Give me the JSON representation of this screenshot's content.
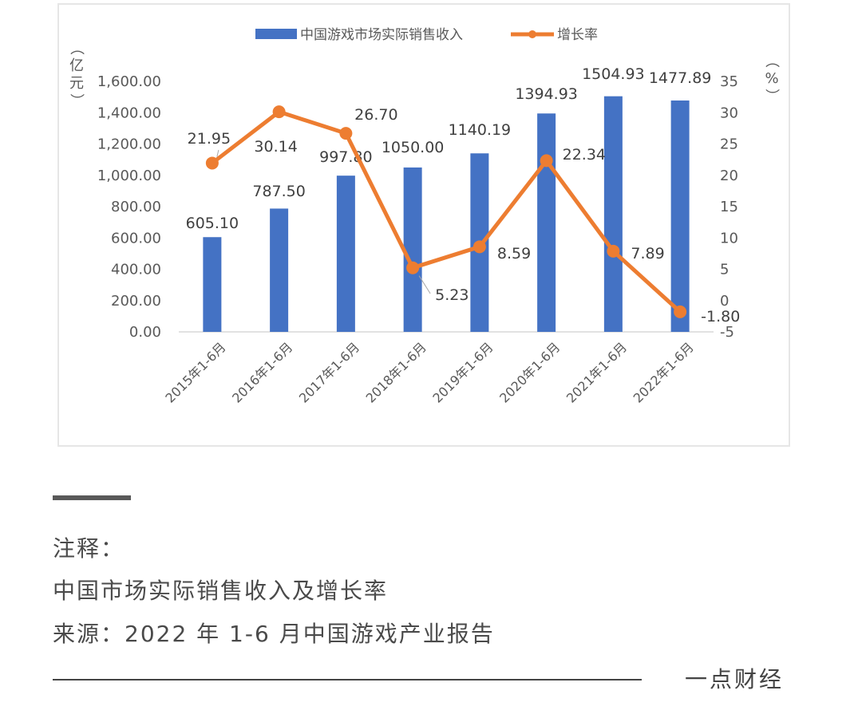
{
  "chart_data": {
    "type": "bar+line",
    "categories": [
      "2015年1-6月",
      "2016年1-6月",
      "2017年1-6月",
      "2018年1-6月",
      "2019年1-6月",
      "2020年1-6月",
      "2021年1-6月",
      "2022年1-6月"
    ],
    "series": [
      {
        "name": "中国游戏市场实际销售收入",
        "type": "bar",
        "axis": "left",
        "color": "#4472C4",
        "values": [
          605.1,
          787.5,
          997.8,
          1050.0,
          1140.19,
          1394.93,
          1504.93,
          1477.89
        ],
        "labels": [
          "605.10",
          "787.50",
          "997.80",
          "1050.00",
          "1140.19",
          "1394.93",
          "1504.93",
          "1477.89"
        ]
      },
      {
        "name": "增长率",
        "type": "line",
        "axis": "right",
        "color": "#ED7D31",
        "values": [
          21.95,
          30.14,
          26.7,
          5.23,
          8.59,
          22.34,
          7.89,
          -1.8
        ],
        "labels": [
          "21.95",
          "30.14",
          "26.70",
          "5.23",
          "8.59",
          "22.34",
          "7.89",
          "-1.80"
        ]
      }
    ],
    "ylabel_left": "（亿元）",
    "ylabel_right": "（%）",
    "ylim_left": [
      0,
      1600
    ],
    "yticks_left": [
      "0.00",
      "200.00",
      "400.00",
      "600.00",
      "800.00",
      "1,000.00",
      "1,200.00",
      "1,400.00",
      "1,600.00"
    ],
    "ylim_right": [
      -5,
      35
    ],
    "yticks_right": [
      "-5",
      "0",
      "5",
      "10",
      "15",
      "20",
      "25",
      "30",
      "35"
    ],
    "legend": "top",
    "grid": false
  },
  "notes": {
    "heading": "注释：",
    "line1": "中国市场实际销售收入及增长率",
    "line2": "来源：2022 年 1-6 月中国游戏产业报告"
  },
  "brand": "一点财经"
}
